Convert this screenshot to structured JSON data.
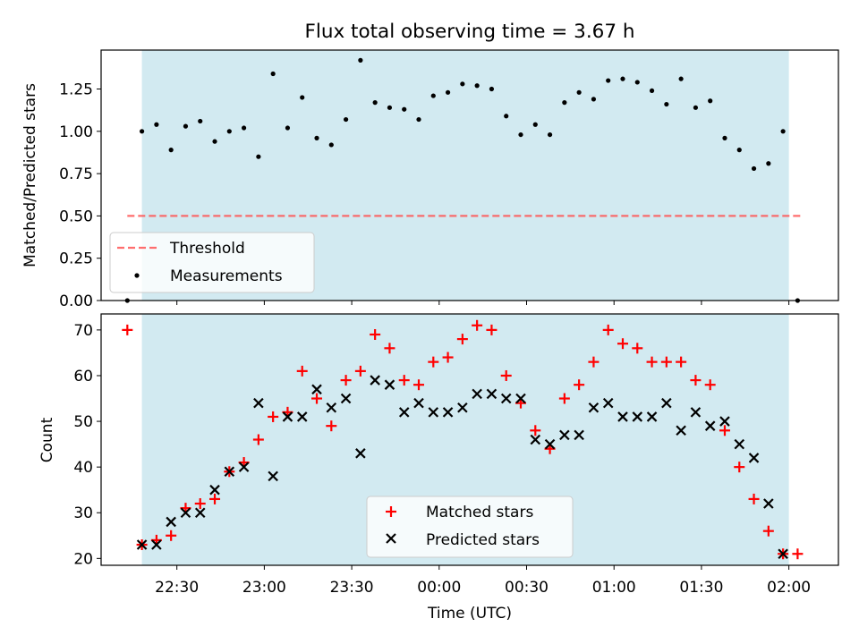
{
  "figure": {
    "title": "Flux total observing time = 3.67 h",
    "xlabel": "Time (UTC)",
    "x_ticks": [
      {
        "label": "22:30",
        "t": 22.5
      },
      {
        "label": "23:00",
        "t": 23.0
      },
      {
        "label": "23:30",
        "t": 23.5
      },
      {
        "label": "00:00",
        "t": 24.0
      },
      {
        "label": "00:30",
        "t": 24.5
      },
      {
        "label": "01:00",
        "t": 25.0
      },
      {
        "label": "01:30",
        "t": 25.5
      },
      {
        "label": "02:00",
        "t": 26.0
      }
    ],
    "observing_window": {
      "start": "22:18",
      "end": "02:00",
      "color": "#add8e6"
    }
  },
  "chart_data": [
    {
      "type": "scatter",
      "ylabel": "Matched/Predicted stars",
      "ylim": [
        0,
        1.48
      ],
      "xlim": [
        "22:04",
        "02:17"
      ],
      "y_ticks": [
        "0.00",
        "0.25",
        "0.50",
        "0.75",
        "1.00",
        "1.25"
      ],
      "threshold": {
        "name": "Threshold",
        "value": 0.5,
        "color": "#ff5555",
        "style": "dashed",
        "x_start": "22:13",
        "x_end": "02:05"
      },
      "series": [
        {
          "name": "Measurements",
          "color": "#000000",
          "marker": "dot",
          "x": [
            "22:13",
            "22:18",
            "22:23",
            "22:28",
            "22:33",
            "22:38",
            "22:43",
            "22:48",
            "22:53",
            "22:58",
            "23:03",
            "23:08",
            "23:13",
            "23:18",
            "23:23",
            "23:28",
            "23:33",
            "23:38",
            "23:43",
            "23:48",
            "23:53",
            "23:58",
            "00:03",
            "00:08",
            "00:13",
            "00:18",
            "00:23",
            "00:28",
            "00:33",
            "00:38",
            "00:43",
            "00:48",
            "00:53",
            "00:58",
            "01:03",
            "01:08",
            "01:13",
            "01:18",
            "01:23",
            "01:28",
            "01:33",
            "01:38",
            "01:43",
            "01:48",
            "01:53",
            "01:58",
            "02:03"
          ],
          "values": [
            0.0,
            1.0,
            1.04,
            0.89,
            1.03,
            1.06,
            0.94,
            1.0,
            1.02,
            0.85,
            1.34,
            1.02,
            1.2,
            0.96,
            0.92,
            1.07,
            1.42,
            1.17,
            1.14,
            1.13,
            1.07,
            1.21,
            1.23,
            1.28,
            1.27,
            1.25,
            1.09,
            0.98,
            1.04,
            0.98,
            1.17,
            1.23,
            1.19,
            1.3,
            1.31,
            1.29,
            1.24,
            1.16,
            1.31,
            1.14,
            1.18,
            0.96,
            0.89,
            0.78,
            0.81,
            1.0,
            0.0
          ]
        }
      ],
      "legend": {
        "placement": "lower-left",
        "entries": [
          "Threshold",
          "Measurements"
        ]
      }
    },
    {
      "type": "scatter",
      "ylabel": "Count",
      "ylim": [
        18.5,
        73.5
      ],
      "xlim": [
        "22:04",
        "02:17"
      ],
      "y_ticks": [
        "20",
        "30",
        "40",
        "50",
        "60",
        "70"
      ],
      "series": [
        {
          "name": "Matched stars",
          "color": "#ff0000",
          "marker": "plus",
          "x": [
            "22:13",
            "22:18",
            "22:23",
            "22:28",
            "22:33",
            "22:38",
            "22:43",
            "22:48",
            "22:53",
            "22:58",
            "23:03",
            "23:08",
            "23:13",
            "23:18",
            "23:23",
            "23:28",
            "23:33",
            "23:38",
            "23:43",
            "23:48",
            "23:53",
            "23:58",
            "00:03",
            "00:08",
            "00:13",
            "00:18",
            "00:23",
            "00:28",
            "00:33",
            "00:38",
            "00:43",
            "00:48",
            "00:53",
            "00:58",
            "01:03",
            "01:08",
            "01:13",
            "01:18",
            "01:23",
            "01:28",
            "01:33",
            "01:38",
            "01:43",
            "01:48",
            "01:53",
            "01:58",
            "02:03"
          ],
          "values": [
            70,
            23,
            24,
            25,
            31,
            32,
            33,
            39,
            41,
            46,
            51,
            52,
            61,
            55,
            49,
            59,
            61,
            69,
            66,
            59,
            58,
            63,
            64,
            68,
            71,
            70,
            60,
            54,
            48,
            44,
            55,
            58,
            63,
            70,
            67,
            66,
            63,
            63,
            63,
            59,
            58,
            48,
            40,
            33,
            26,
            21,
            21
          ]
        },
        {
          "name": "Predicted stars",
          "color": "#000000",
          "marker": "x",
          "x": [
            "22:18",
            "22:23",
            "22:28",
            "22:33",
            "22:38",
            "22:43",
            "22:48",
            "22:53",
            "22:58",
            "23:03",
            "23:08",
            "23:13",
            "23:18",
            "23:23",
            "23:28",
            "23:33",
            "23:38",
            "23:43",
            "23:48",
            "23:53",
            "23:58",
            "00:03",
            "00:08",
            "00:13",
            "00:18",
            "00:23",
            "00:28",
            "00:33",
            "00:38",
            "00:43",
            "00:48",
            "00:53",
            "00:58",
            "01:03",
            "01:08",
            "01:13",
            "01:18",
            "01:23",
            "01:28",
            "01:33",
            "01:38",
            "01:43",
            "01:48",
            "01:53",
            "01:58"
          ],
          "values": [
            23,
            23,
            28,
            30,
            30,
            35,
            39,
            40,
            54,
            38,
            51,
            51,
            57,
            53,
            55,
            43,
            59,
            58,
            52,
            54,
            52,
            52,
            53,
            56,
            56,
            55,
            55,
            46,
            45,
            47,
            47,
            53,
            54,
            51,
            51,
            51,
            54,
            48,
            52,
            49,
            50,
            45,
            42,
            32,
            21
          ]
        }
      ],
      "legend": {
        "placement": "lower-center",
        "entries": [
          "Matched stars",
          "Predicted stars"
        ]
      }
    }
  ]
}
